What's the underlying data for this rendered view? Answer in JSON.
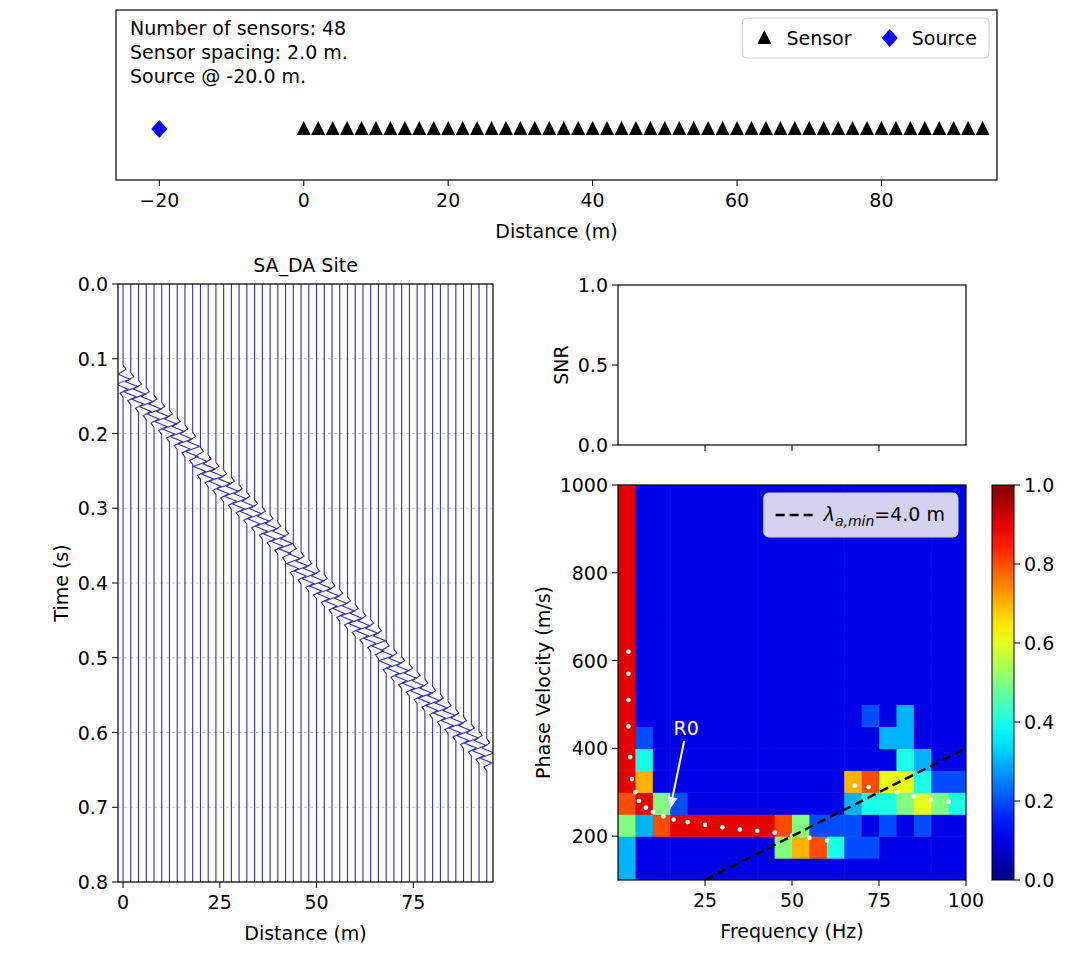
{
  "chart_data": [
    {
      "type": "scatter",
      "annotations": [
        "Number of sensors: 48",
        "Sensor spacing: 2.0 m.",
        "Source @ -20.0 m."
      ],
      "x_label": "Distance (m)",
      "xlim": [
        -26,
        96
      ],
      "ylim": [
        -1,
        1
      ],
      "xticks": [
        {
          "value": -20,
          "label": "−20"
        },
        0,
        20,
        40,
        60,
        80
      ],
      "tick_labels": "x",
      "legend": "upper right",
      "series": [
        {
          "name": "Sensor",
          "color": "#000000",
          "marker": "triangle",
          "x": [
            0,
            2,
            4,
            6,
            8,
            10,
            12,
            14,
            16,
            18,
            20,
            22,
            24,
            26,
            28,
            30,
            32,
            34,
            36,
            38,
            40,
            42,
            44,
            46,
            48,
            50,
            52,
            54,
            56,
            58,
            60,
            62,
            64,
            66,
            68,
            70,
            72,
            74,
            76,
            78,
            80,
            82,
            84,
            86,
            88,
            90,
            92,
            94
          ],
          "values": [
            -0.4,
            -0.4,
            -0.4,
            -0.4,
            -0.4,
            -0.4,
            -0.4,
            -0.4,
            -0.4,
            -0.4,
            -0.4,
            -0.4,
            -0.4,
            -0.4,
            -0.4,
            -0.4,
            -0.4,
            -0.4,
            -0.4,
            -0.4,
            -0.4,
            -0.4,
            -0.4,
            -0.4,
            -0.4,
            -0.4,
            -0.4,
            -0.4,
            -0.4,
            -0.4,
            -0.4,
            -0.4,
            -0.4,
            -0.4,
            -0.4,
            -0.4,
            -0.4,
            -0.4,
            -0.4,
            -0.4,
            -0.4,
            -0.4,
            -0.4,
            -0.4,
            -0.4,
            -0.4,
            -0.4,
            -0.4
          ]
        },
        {
          "name": "Source",
          "color": "#0000ff",
          "marker": "diamond",
          "x": [
            -20
          ],
          "values": [
            -0.4
          ]
        }
      ]
    },
    {
      "type": "wiggle",
      "title": "SA_DA Site",
      "x_label": "Distance (m)",
      "y_label": "Time (s)",
      "xlim": [
        -1.3,
        95.6
      ],
      "ylim": [
        0.8,
        0
      ],
      "xticks": [
        0,
        25,
        50,
        75
      ],
      "yticks": [
        {
          "value": 0,
          "label": "0.0"
        },
        0.1,
        0.2,
        0.3,
        0.4,
        0.5,
        0.6,
        0.7,
        0.8
      ],
      "grid": true,
      "series": [
        {
          "color": "#3030b0",
          "x": [
            0,
            2,
            4,
            6,
            8,
            10,
            12,
            14,
            16,
            18,
            20,
            22,
            24,
            26,
            28,
            30,
            32,
            34,
            36,
            38,
            40,
            42,
            44,
            46,
            48,
            50,
            52,
            54,
            56,
            58,
            60,
            62,
            64,
            66,
            68,
            70,
            72,
            74,
            76,
            78,
            80,
            82,
            84,
            86,
            88,
            90,
            92,
            94
          ],
          "values": [
            0.13,
            0.14,
            0.15,
            0.16,
            0.17,
            0.18,
            0.19,
            0.2,
            0.21,
            0.22,
            0.24,
            0.25,
            0.26,
            0.27,
            0.28,
            0.29,
            0.3,
            0.31,
            0.32,
            0.33,
            0.34,
            0.35,
            0.37,
            0.38,
            0.39,
            0.4,
            0.41,
            0.42,
            0.43,
            0.44,
            0.45,
            0.46,
            0.47,
            0.48,
            0.5,
            0.51,
            0.52,
            0.53,
            0.54,
            0.55,
            0.56,
            0.57,
            0.58,
            0.59,
            0.6,
            0.61,
            0.62,
            0.63
          ]
        }
      ]
    },
    {
      "type": "line",
      "y_label": "SNR",
      "xlim": [
        0,
        100
      ],
      "ylim": [
        0,
        1
      ],
      "xticks": [
        25,
        50,
        75
      ],
      "yticks": [
        {
          "value": 0,
          "label": "0.0"
        },
        0.5,
        {
          "value": 1,
          "label": "1.0"
        }
      ],
      "tick_labels": "y",
      "series": []
    },
    {
      "type": "heatmap",
      "x_label": "Frequency (Hz)",
      "y_label": "Phase Velocity (m/s)",
      "xlim": [
        0,
        100
      ],
      "ylim": [
        100,
        1000
      ],
      "xticks": [
        25,
        50,
        75,
        100
      ],
      "yticks": [
        200,
        400,
        600,
        800,
        1000
      ],
      "legend": "upper right",
      "x": [
        2.5,
        7.5,
        12.5,
        17.5,
        22.5,
        27.5,
        32.5,
        37.5,
        42.5,
        47.5,
        52.5,
        57.5,
        62.5,
        67.5,
        72.5,
        77.5,
        82.5,
        87.5,
        92.5,
        97.5
      ],
      "y": [
        125,
        175,
        225,
        275,
        325,
        375,
        425,
        475,
        525,
        575,
        625,
        675,
        725,
        775,
        825,
        875,
        925,
        975
      ],
      "z": [
        [
          0.3,
          0.1,
          0.1,
          0.1,
          0.1,
          0.1,
          0.1,
          0.1,
          0.1,
          0.1,
          0.1,
          0.1,
          0.1,
          0.1,
          0.1,
          0.1,
          0.1,
          0.1,
          0.1,
          0.1
        ],
        [
          0.3,
          0.1,
          0.1,
          0.1,
          0.1,
          0.1,
          0.1,
          0.1,
          0.1,
          0.5,
          0.7,
          0.8,
          0.4,
          0.2,
          0.2,
          0.1,
          0.1,
          0.1,
          0.1,
          0.1
        ],
        [
          0.5,
          0.3,
          0.8,
          0.9,
          0.9,
          0.9,
          0.9,
          0.9,
          0.9,
          0.8,
          0.5,
          0.2,
          0.2,
          0.2,
          0.1,
          0.2,
          0.1,
          0.2,
          0.1,
          0.1
        ],
        [
          0.8,
          0.9,
          0.5,
          0.2,
          0.1,
          0.1,
          0.1,
          0.1,
          0.1,
          0.1,
          0.1,
          0.1,
          0.1,
          0.3,
          0.4,
          0.4,
          0.5,
          0.6,
          0.5,
          0.4
        ],
        [
          0.9,
          0.7,
          0.1,
          0.1,
          0.1,
          0.1,
          0.1,
          0.1,
          0.1,
          0.1,
          0.1,
          0.1,
          0.1,
          0.7,
          0.8,
          0.6,
          0.6,
          0.4,
          0.2,
          0.2
        ],
        [
          0.9,
          0.4,
          0.1,
          0.1,
          0.1,
          0.1,
          0.1,
          0.1,
          0.1,
          0.1,
          0.1,
          0.1,
          0.1,
          0.1,
          0.1,
          0.1,
          0.4,
          0.3,
          0.1,
          0.1
        ],
        [
          0.9,
          0.2,
          0.1,
          0.1,
          0.1,
          0.1,
          0.1,
          0.1,
          0.1,
          0.1,
          0.1,
          0.1,
          0.1,
          0.1,
          0.1,
          0.3,
          0.3,
          0.1,
          0.1,
          0.1
        ],
        [
          0.9,
          0.1,
          0.1,
          0.1,
          0.1,
          0.1,
          0.1,
          0.1,
          0.1,
          0.1,
          0.1,
          0.1,
          0.1,
          0.1,
          0.2,
          0.1,
          0.3,
          0.1,
          0.1,
          0.1
        ],
        [
          0.9,
          0.1,
          0.1,
          0.1,
          0.1,
          0.1,
          0.1,
          0.1,
          0.1,
          0.1,
          0.1,
          0.1,
          0.1,
          0.1,
          0.1,
          0.1,
          0.1,
          0.1,
          0.1,
          0.1
        ],
        [
          0.9,
          0.1,
          0.1,
          0.1,
          0.1,
          0.1,
          0.1,
          0.1,
          0.1,
          0.1,
          0.1,
          0.1,
          0.1,
          0.1,
          0.1,
          0.1,
          0.1,
          0.1,
          0.1,
          0.1
        ],
        [
          0.9,
          0.1,
          0.1,
          0.1,
          0.1,
          0.1,
          0.1,
          0.1,
          0.1,
          0.1,
          0.1,
          0.1,
          0.1,
          0.1,
          0.1,
          0.1,
          0.1,
          0.1,
          0.1,
          0.1
        ],
        [
          0.9,
          0.1,
          0.1,
          0.1,
          0.1,
          0.1,
          0.1,
          0.1,
          0.1,
          0.1,
          0.1,
          0.1,
          0.1,
          0.1,
          0.1,
          0.1,
          0.1,
          0.1,
          0.1,
          0.1
        ],
        [
          0.9,
          0.1,
          0.1,
          0.1,
          0.1,
          0.1,
          0.1,
          0.1,
          0.1,
          0.1,
          0.1,
          0.1,
          0.1,
          0.1,
          0.1,
          0.1,
          0.1,
          0.1,
          0.1,
          0.1
        ],
        [
          0.9,
          0.1,
          0.1,
          0.1,
          0.1,
          0.1,
          0.1,
          0.1,
          0.1,
          0.1,
          0.1,
          0.1,
          0.1,
          0.1,
          0.1,
          0.1,
          0.1,
          0.1,
          0.1,
          0.1
        ],
        [
          0.9,
          0.1,
          0.1,
          0.1,
          0.1,
          0.1,
          0.1,
          0.1,
          0.1,
          0.1,
          0.1,
          0.1,
          0.1,
          0.1,
          0.1,
          0.1,
          0.1,
          0.1,
          0.1,
          0.1
        ],
        [
          0.9,
          0.1,
          0.1,
          0.1,
          0.1,
          0.1,
          0.1,
          0.1,
          0.1,
          0.1,
          0.1,
          0.1,
          0.1,
          0.1,
          0.1,
          0.1,
          0.1,
          0.1,
          0.1,
          0.1
        ],
        [
          0.9,
          0.1,
          0.1,
          0.1,
          0.1,
          0.1,
          0.1,
          0.1,
          0.1,
          0.1,
          0.1,
          0.1,
          0.1,
          0.1,
          0.1,
          0.1,
          0.1,
          0.1,
          0.1,
          0.1
        ],
        [
          0.9,
          0.1,
          0.1,
          0.1,
          0.1,
          0.1,
          0.1,
          0.1,
          0.1,
          0.1,
          0.1,
          0.1,
          0.1,
          0.1,
          0.1,
          0.1,
          0.1,
          0.1,
          0.1,
          0.1
        ]
      ],
      "colorbar": {
        "range": [
          0,
          1
        ],
        "ticks": [
          {
            "value": 0,
            "label": "0.0"
          },
          0.2,
          0.4,
          0.6,
          0.8,
          {
            "value": 1,
            "label": "1.0"
          }
        ]
      },
      "series": [
        {
          "type": "scatter",
          "color": "#ffffff",
          "marker": "circle",
          "x": [
            3,
            3,
            3,
            3,
            3.5,
            4,
            5,
            6,
            8,
            10,
            13,
            16,
            20,
            25,
            30,
            35,
            40,
            45,
            50,
            55,
            60,
            68,
            72,
            76,
            80,
            85,
            90,
            95
          ],
          "values": [
            620,
            570,
            510,
            450,
            380,
            330,
            300,
            280,
            265,
            255,
            245,
            238,
            232,
            226,
            220,
            215,
            212,
            208,
            202,
            196,
            190,
            315,
            312,
            305,
            300,
            290,
            283,
            278
          ]
        },
        {
          "type": "line",
          "name": "λa,min=4.0 m",
          "color": "#000000",
          "line_style": "dashed",
          "x": [
            25,
            100
          ],
          "values": [
            100,
            400
          ]
        }
      ],
      "annotations": [
        {
          "text": "R0",
          "x": 15,
          "y": 262
        }
      ]
    }
  ]
}
